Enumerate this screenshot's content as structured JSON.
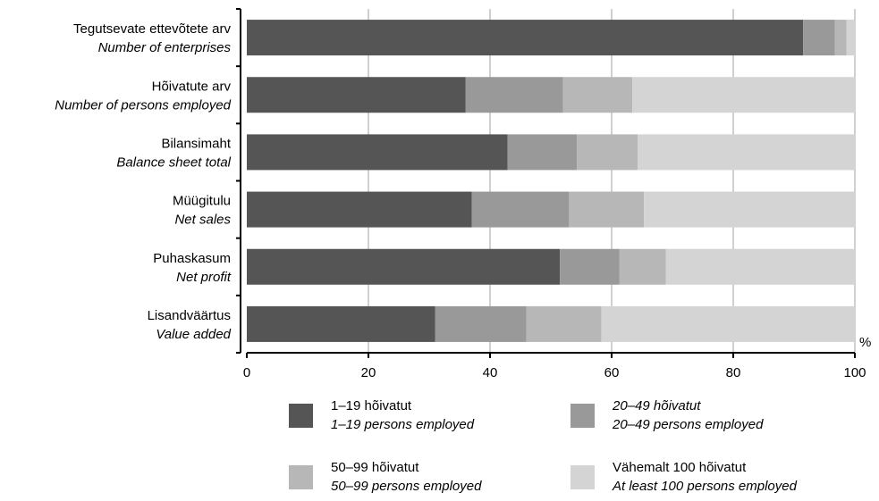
{
  "chart_data": {
    "type": "bar",
    "orientation": "horizontal",
    "stacked": true,
    "categories": [
      {
        "et": "Tegutsevate ettevõtete arv",
        "en": "Number of enterprises"
      },
      {
        "et": "Hõivatute arv",
        "en": "Number of persons employed"
      },
      {
        "et": "Bilansimaht",
        "en": "Balance sheet total"
      },
      {
        "et": "Müügitulu",
        "en": "Net sales"
      },
      {
        "et": "Puhaskasum",
        "en": "Net profit"
      },
      {
        "et": "Lisandväärtus",
        "en": "Value added"
      }
    ],
    "series": [
      {
        "name_et": "1–19 hõivatut",
        "name_en": "1–19 persons employed",
        "color": "#555555",
        "values": [
          91.5,
          36.0,
          42.9,
          37.0,
          51.5,
          31.0
        ]
      },
      {
        "name_et": "20–49 hõivatut",
        "name_en": "20–49 persons employed",
        "color": "#999999",
        "values": [
          5.2,
          16.0,
          11.4,
          16.0,
          9.8,
          15.0
        ]
      },
      {
        "name_et": "50–99 hõivatut",
        "name_en": "50–99 persons employed",
        "color": "#b7b7b7",
        "values": [
          1.9,
          11.4,
          10.0,
          12.3,
          7.6,
          12.3
        ]
      },
      {
        "name_et": "Vähemalt 100 hõivatut",
        "name_en": "At least 100 persons employed",
        "color": "#d4d4d4",
        "values": [
          1.4,
          36.6,
          35.7,
          34.7,
          31.1,
          41.7
        ]
      }
    ],
    "xlim": [
      0,
      100
    ],
    "xticks": [
      "0",
      "20",
      "40",
      "60",
      "80",
      "100"
    ],
    "xunit": "%",
    "grid": true,
    "legend_position": "bottom"
  }
}
